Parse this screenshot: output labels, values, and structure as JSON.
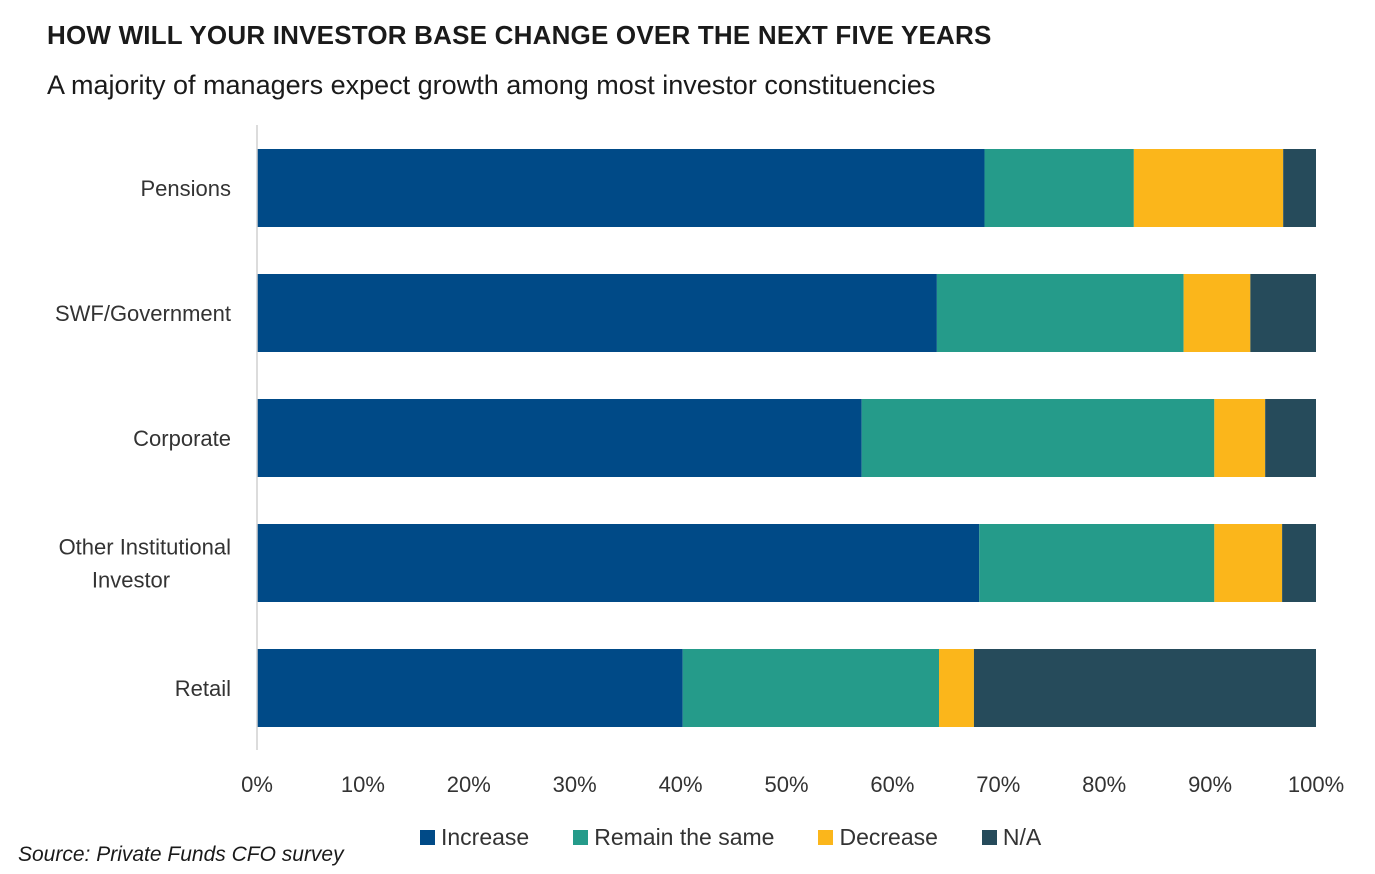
{
  "header": {
    "title": "HOW WILL YOUR INVESTOR BASE CHANGE OVER THE NEXT FIVE YEARS",
    "subtitle": "A majority of managers expect growth among most investor constituencies"
  },
  "footer": {
    "source": "Source: Private Funds CFO survey"
  },
  "chart_data": {
    "type": "bar",
    "orientation": "horizontal",
    "stacked": "percent",
    "categories": [
      [
        "Pensions"
      ],
      [
        "SWF/Government"
      ],
      [
        "Corporate"
      ],
      [
        "Other Institutional",
        "Investor"
      ],
      [
        "Retail"
      ]
    ],
    "series": [
      {
        "name": "Increase",
        "color": "#004a87",
        "values": [
          68.7,
          64.2,
          57.1,
          68.2,
          40.2
        ]
      },
      {
        "name": "Remain the same",
        "color": "#259b8a",
        "values": [
          14.1,
          23.3,
          33.3,
          22.2,
          24.2
        ]
      },
      {
        "name": "Decrease",
        "color": "#fbb61b",
        "values": [
          14.1,
          6.3,
          4.8,
          6.4,
          3.3
        ]
      },
      {
        "name": "N/A",
        "color": "#264b5b",
        "values": [
          3.1,
          6.2,
          4.8,
          3.2,
          32.3
        ]
      }
    ],
    "x_ticks": [
      "0%",
      "10%",
      "20%",
      "30%",
      "40%",
      "50%",
      "60%",
      "70%",
      "80%",
      "90%",
      "100%"
    ],
    "xlim": [
      0,
      100
    ],
    "grid": false,
    "legend_position": "bottom",
    "xlabel": "",
    "ylabel": ""
  }
}
